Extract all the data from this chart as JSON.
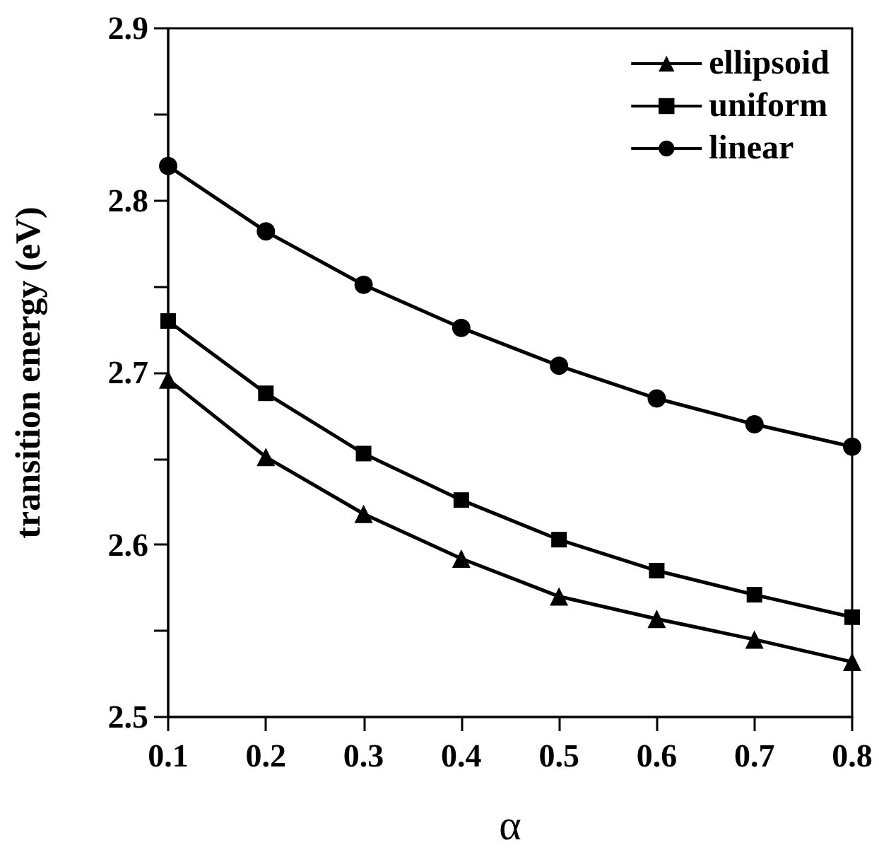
{
  "chart_data": {
    "type": "line",
    "xlabel": "α",
    "ylabel": "transition energy (eV)",
    "x": [
      0.1,
      0.2,
      0.3,
      0.4,
      0.5,
      0.6,
      0.7,
      0.8
    ],
    "series": [
      {
        "name": "ellipsoid",
        "color": "#000000",
        "marker": "triangle",
        "values": [
          2.696,
          2.651,
          2.618,
          2.592,
          2.57,
          2.557,
          2.545,
          2.532
        ]
      },
      {
        "name": "uniform",
        "color": "#000000",
        "marker": "square",
        "values": [
          2.73,
          2.688,
          2.653,
          2.626,
          2.603,
          2.585,
          2.571,
          2.558
        ]
      },
      {
        "name": "linear",
        "color": "#000000",
        "marker": "circle",
        "values": [
          2.82,
          2.782,
          2.751,
          2.726,
          2.704,
          2.685,
          2.67,
          2.657
        ]
      }
    ],
    "xlim": [
      0.1,
      0.8
    ],
    "xticks": [
      0.1,
      0.2,
      0.3,
      0.4,
      0.5,
      0.6,
      0.7,
      0.8
    ],
    "ylim": [
      2.5,
      2.9
    ],
    "yticks": [
      2.5,
      {
        "value": 2.55,
        "label": null
      },
      2.6,
      {
        "value": 2.65,
        "label": null
      },
      2.7,
      {
        "value": 2.75,
        "label": null
      },
      2.8,
      {
        "value": 2.85,
        "label": null
      },
      2.9
    ],
    "grid": false,
    "legend": "top right",
    "line_style": "solid"
  }
}
